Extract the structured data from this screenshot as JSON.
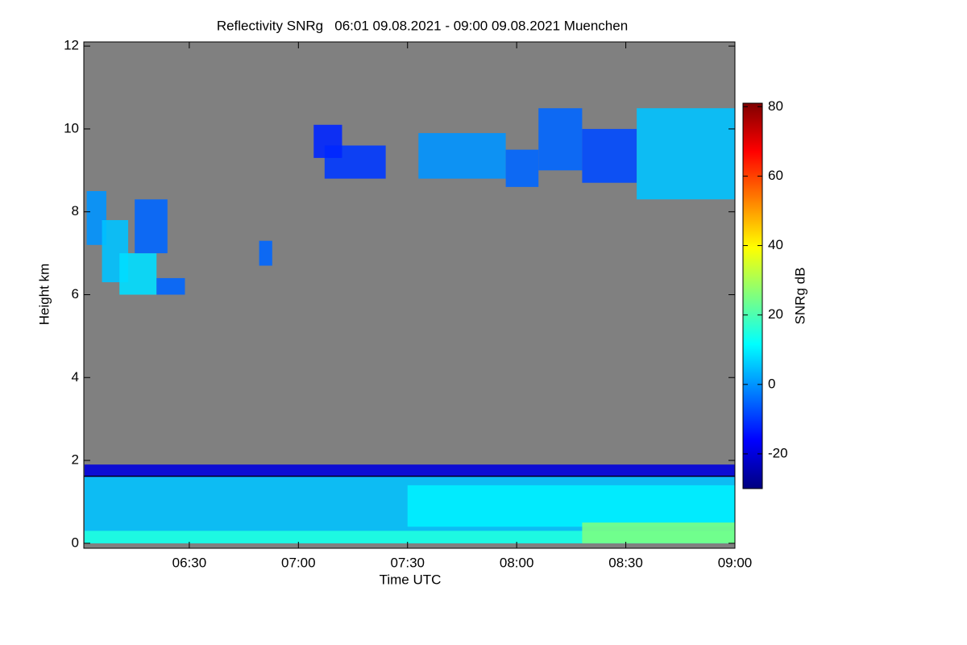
{
  "chart_data": {
    "type": "heatmap",
    "title": "Reflectivity SNRg   06:01 09.08.2021 - 09:00 09.08.2021 Muenchen",
    "x_label": "Time UTC",
    "y_label": "Height km",
    "colorbar_label": "SNRg dB",
    "xlim": [
      6.0167,
      9.0
    ],
    "xticks": [
      {
        "value": 6.5,
        "label": "06:30"
      },
      {
        "value": 7,
        "label": "07:00"
      },
      {
        "value": 7.5,
        "label": "07:30"
      },
      {
        "value": 8,
        "label": "08:00"
      },
      {
        "value": 8.5,
        "label": "08:30"
      },
      {
        "value": 9,
        "label": "09:00"
      }
    ],
    "ylim": [
      -0.12,
      12.1
    ],
    "yticks": [
      0,
      2,
      4,
      6,
      8,
      10,
      12
    ],
    "clim": [
      -30,
      81
    ],
    "cticks": [
      -20,
      0,
      20,
      40,
      60,
      80
    ],
    "colorscale": [
      "#00007f",
      "#0000ff",
      "#007fff",
      "#00ffff",
      "#7fff7f",
      "#ffff00",
      "#ff7f00",
      "#ff0000",
      "#7f0000"
    ],
    "background": "#808080",
    "hline": 1.62,
    "cells": [
      {
        "t": [
          6.02,
          9.0
        ],
        "h": [
          1.6,
          1.9
        ],
        "snr": -20
      },
      {
        "t": [
          6.02,
          9.0
        ],
        "h": [
          0.0,
          1.6
        ],
        "snr": 5
      },
      {
        "t": [
          7.5,
          9.0
        ],
        "h": [
          0.4,
          1.4
        ],
        "snr": 10
      },
      {
        "t": [
          6.02,
          9.0
        ],
        "h": [
          0.0,
          0.3
        ],
        "snr": 15
      },
      {
        "t": [
          8.3,
          9.0
        ],
        "h": [
          0.0,
          0.5
        ],
        "snr": 25
      },
      {
        "t": [
          6.03,
          6.12
        ],
        "h": [
          7.2,
          8.5
        ],
        "snr": 0
      },
      {
        "t": [
          6.1,
          6.22
        ],
        "h": [
          6.3,
          7.8
        ],
        "snr": 5
      },
      {
        "t": [
          6.18,
          6.35
        ],
        "h": [
          6.0,
          7.0
        ],
        "snr": 8
      },
      {
        "t": [
          6.25,
          6.4
        ],
        "h": [
          7.0,
          8.3
        ],
        "snr": -5
      },
      {
        "t": [
          6.35,
          6.48
        ],
        "h": [
          6.0,
          6.4
        ],
        "snr": -5
      },
      {
        "t": [
          6.82,
          6.88
        ],
        "h": [
          6.7,
          7.3
        ],
        "snr": -5
      },
      {
        "t": [
          7.12,
          7.4
        ],
        "h": [
          8.8,
          9.6
        ],
        "snr": -10
      },
      {
        "t": [
          7.07,
          7.2
        ],
        "h": [
          9.3,
          10.1
        ],
        "snr": -12
      },
      {
        "t": [
          7.55,
          7.95
        ],
        "h": [
          8.8,
          9.9
        ],
        "snr": 0
      },
      {
        "t": [
          7.95,
          8.1
        ],
        "h": [
          8.6,
          9.5
        ],
        "snr": -5
      },
      {
        "t": [
          8.1,
          8.3
        ],
        "h": [
          9.0,
          10.5
        ],
        "snr": -5
      },
      {
        "t": [
          8.3,
          8.55
        ],
        "h": [
          8.7,
          10.0
        ],
        "snr": -8
      },
      {
        "t": [
          8.55,
          9.0
        ],
        "h": [
          8.3,
          10.5
        ],
        "snr": 5
      }
    ]
  }
}
